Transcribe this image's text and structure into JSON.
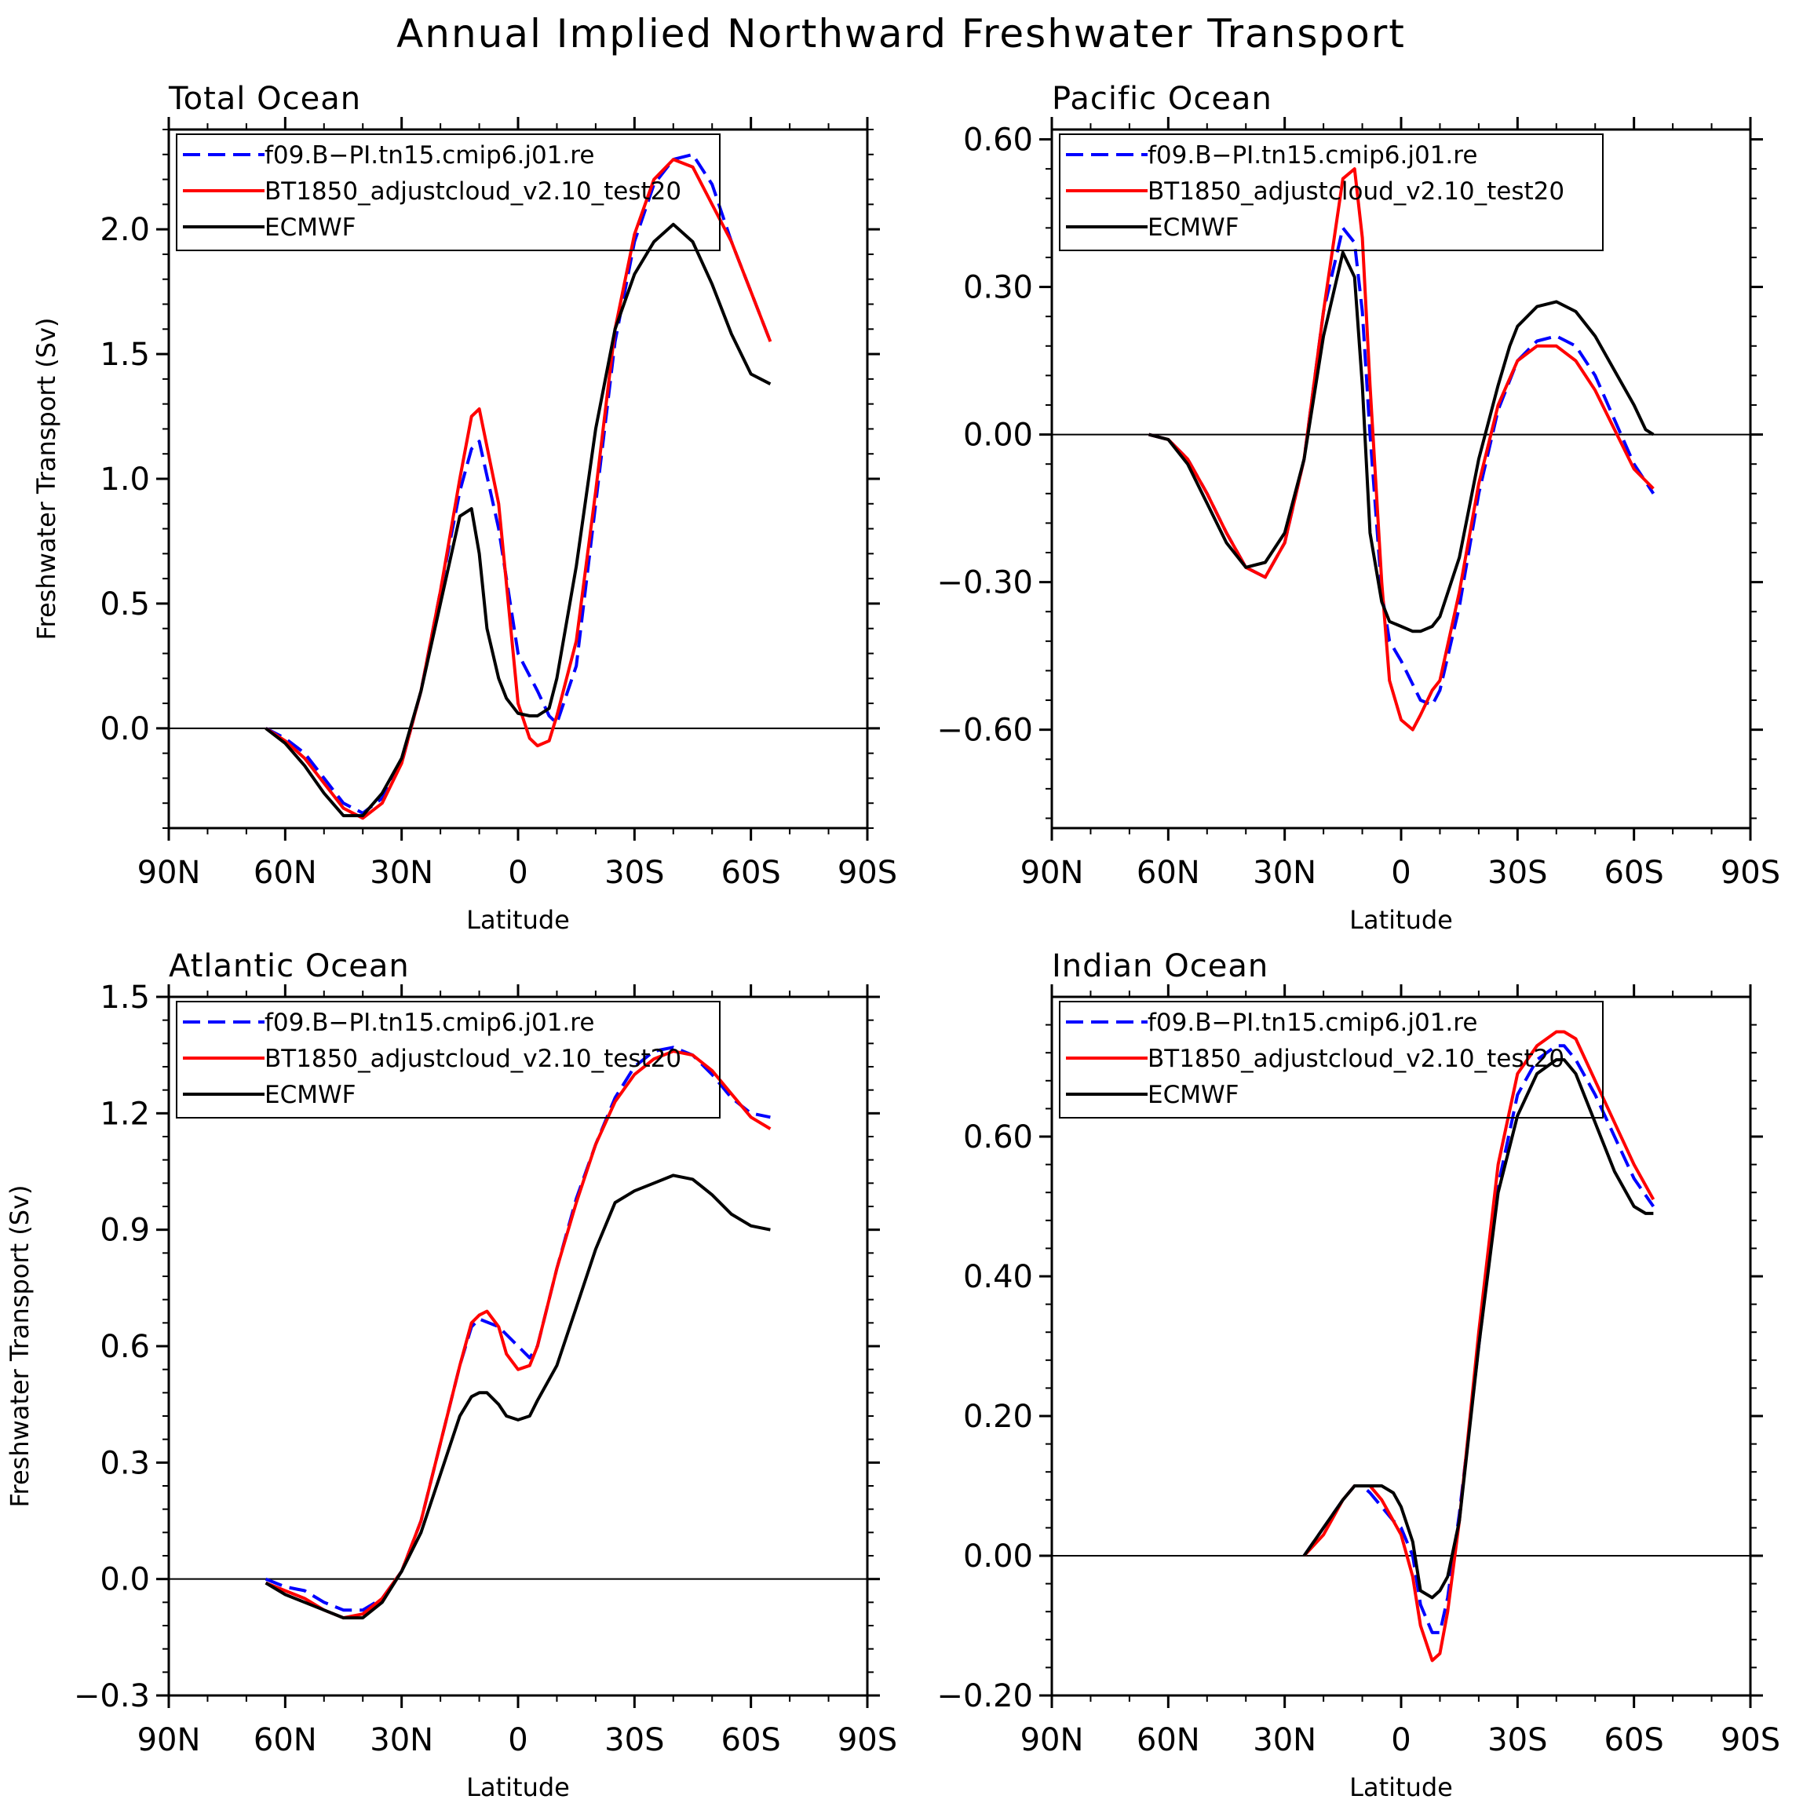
{
  "title": "Annual Implied Northward Freshwater Transport",
  "colors": {
    "series_1": "#0000ff",
    "series_2": "#ff0000",
    "series_3": "#000000"
  },
  "chart_data": [
    {
      "type": "line",
      "title": "Total Ocean",
      "xlabel": "Latitude",
      "ylabel": "Freshwater Transport (Sv)",
      "x_direction": "north-to-south",
      "xlim": [
        90,
        -90
      ],
      "ylim": [
        -0.4,
        2.4
      ],
      "xticks": [
        90,
        60,
        30,
        0,
        -30,
        -60,
        -90
      ],
      "xtick_labels": [
        "90N",
        "60N",
        "30N",
        "0",
        "30S",
        "60S",
        "90S"
      ],
      "yticks": [
        0.0,
        0.5,
        1.0,
        1.5,
        2.0
      ],
      "ytick_labels": [
        "0.0",
        "0.5",
        "1.0",
        "1.5",
        "2.0"
      ],
      "legend": "top-left",
      "series": [
        {
          "name": "f09.B−PI.tn15.cmip6.j01.re",
          "style": "dashed",
          "color": "#0000ff",
          "x": [
            65,
            60,
            55,
            50,
            45,
            40,
            35,
            30,
            25,
            20,
            15,
            12,
            10,
            5,
            0,
            -5,
            -8,
            -10,
            -15,
            -20,
            -25,
            -30,
            -35,
            -40,
            -45,
            -50,
            -55,
            -60,
            -65
          ],
          "y": [
            0.0,
            -0.04,
            -0.1,
            -0.2,
            -0.3,
            -0.34,
            -0.28,
            -0.14,
            0.15,
            0.55,
            0.95,
            1.12,
            1.15,
            0.8,
            0.3,
            0.15,
            0.05,
            0.02,
            0.25,
            0.9,
            1.55,
            1.95,
            2.18,
            2.28,
            2.3,
            2.18,
            1.95,
            1.75,
            1.55
          ]
        },
        {
          "name": "BT1850_adjustcloud_v2.10_test20",
          "style": "solid",
          "color": "#ff0000",
          "x": [
            65,
            60,
            55,
            50,
            45,
            40,
            35,
            30,
            25,
            20,
            15,
            12,
            10,
            5,
            0,
            -3,
            -5,
            -8,
            -10,
            -15,
            -20,
            -25,
            -30,
            -35,
            -40,
            -45,
            -50,
            -55,
            -60,
            -65
          ],
          "y": [
            0.0,
            -0.05,
            -0.12,
            -0.22,
            -0.32,
            -0.36,
            -0.3,
            -0.14,
            0.15,
            0.55,
            1.0,
            1.25,
            1.28,
            0.9,
            0.1,
            -0.04,
            -0.07,
            -0.05,
            0.05,
            0.35,
            0.95,
            1.6,
            1.98,
            2.2,
            2.28,
            2.25,
            2.1,
            1.95,
            1.75,
            1.55
          ]
        },
        {
          "name": "ECMWF",
          "style": "solid",
          "color": "#000000",
          "x": [
            65,
            60,
            55,
            50,
            45,
            40,
            35,
            30,
            25,
            20,
            15,
            12,
            10,
            8,
            5,
            3,
            0,
            -3,
            -5,
            -8,
            -10,
            -15,
            -20,
            -25,
            -30,
            -35,
            -40,
            -45,
            -50,
            -55,
            -60,
            -65
          ],
          "y": [
            0.0,
            -0.06,
            -0.15,
            -0.26,
            -0.35,
            -0.35,
            -0.26,
            -0.12,
            0.15,
            0.5,
            0.85,
            0.88,
            0.7,
            0.4,
            0.2,
            0.12,
            0.06,
            0.05,
            0.05,
            0.08,
            0.2,
            0.65,
            1.2,
            1.6,
            1.82,
            1.95,
            2.02,
            1.95,
            1.78,
            1.58,
            1.42,
            1.38
          ]
        }
      ]
    },
    {
      "type": "line",
      "title": "Pacific Ocean",
      "xlabel": "Latitude",
      "ylabel": "",
      "x_direction": "north-to-south",
      "xlim": [
        90,
        -90
      ],
      "ylim": [
        -0.8,
        0.62
      ],
      "xticks": [
        90,
        60,
        30,
        0,
        -30,
        -60,
        -90
      ],
      "xtick_labels": [
        "90N",
        "60N",
        "30N",
        "0",
        "30S",
        "60S",
        "90S"
      ],
      "yticks": [
        -0.6,
        -0.3,
        0.0,
        0.3,
        0.6
      ],
      "ytick_labels": [
        "−0.60",
        "−0.30",
        "0.00",
        "0.30",
        "0.60"
      ],
      "legend": "top-left",
      "series": [
        {
          "name": "f09.B−PI.tn15.cmip6.j01.re",
          "style": "dashed",
          "color": "#0000ff",
          "x": [
            65,
            60,
            55,
            50,
            45,
            40,
            35,
            30,
            25,
            20,
            15,
            12,
            10,
            8,
            5,
            3,
            0,
            -5,
            -8,
            -10,
            -15,
            -20,
            -25,
            -30,
            -35,
            -40,
            -45,
            -50,
            -55,
            -60,
            -65
          ],
          "y": [
            0.0,
            -0.01,
            -0.05,
            -0.12,
            -0.2,
            -0.27,
            -0.29,
            -0.22,
            -0.05,
            0.25,
            0.42,
            0.39,
            0.25,
            0.0,
            -0.32,
            -0.42,
            -0.46,
            -0.54,
            -0.55,
            -0.52,
            -0.35,
            -0.12,
            0.05,
            0.15,
            0.19,
            0.2,
            0.18,
            0.12,
            0.03,
            -0.06,
            -0.12
          ]
        },
        {
          "name": "BT1850_adjustcloud_v2.10_test20",
          "style": "solid",
          "color": "#ff0000",
          "x": [
            65,
            60,
            55,
            50,
            45,
            40,
            35,
            30,
            25,
            20,
            15,
            12,
            10,
            8,
            5,
            3,
            0,
            -3,
            -5,
            -8,
            -10,
            -15,
            -20,
            -25,
            -30,
            -35,
            -40,
            -45,
            -50,
            -55,
            -60,
            -65
          ],
          "y": [
            0.0,
            -0.01,
            -0.05,
            -0.12,
            -0.2,
            -0.27,
            -0.29,
            -0.22,
            -0.05,
            0.25,
            0.52,
            0.54,
            0.4,
            0.1,
            -0.3,
            -0.5,
            -0.58,
            -0.6,
            -0.57,
            -0.52,
            -0.5,
            -0.32,
            -0.1,
            0.06,
            0.15,
            0.18,
            0.18,
            0.15,
            0.09,
            0.01,
            -0.07,
            -0.11
          ]
        },
        {
          "name": "ECMWF",
          "style": "solid",
          "color": "#000000",
          "x": [
            65,
            60,
            55,
            50,
            45,
            40,
            35,
            30,
            25,
            20,
            15,
            12,
            10,
            8,
            5,
            3,
            0,
            -3,
            -5,
            -8,
            -10,
            -15,
            -20,
            -25,
            -28,
            -30,
            -35,
            -40,
            -45,
            -50,
            -55,
            -60,
            -63,
            -65
          ],
          "y": [
            0.0,
            -0.01,
            -0.06,
            -0.14,
            -0.22,
            -0.27,
            -0.26,
            -0.2,
            -0.05,
            0.2,
            0.37,
            0.32,
            0.1,
            -0.2,
            -0.34,
            -0.38,
            -0.39,
            -0.4,
            -0.4,
            -0.39,
            -0.37,
            -0.25,
            -0.05,
            0.1,
            0.18,
            0.22,
            0.26,
            0.27,
            0.25,
            0.2,
            0.13,
            0.06,
            0.01,
            0.0
          ]
        }
      ]
    },
    {
      "type": "line",
      "title": "Atlantic Ocean",
      "xlabel": "Latitude",
      "ylabel": "Freshwater Transport (Sv)",
      "x_direction": "north-to-south",
      "xlim": [
        90,
        -90
      ],
      "ylim": [
        -0.3,
        1.5
      ],
      "xticks": [
        90,
        60,
        30,
        0,
        -30,
        -60,
        -90
      ],
      "xtick_labels": [
        "90N",
        "60N",
        "30N",
        "0",
        "30S",
        "60S",
        "90S"
      ],
      "yticks": [
        -0.3,
        0.0,
        0.3,
        0.6,
        0.9,
        1.2,
        1.5
      ],
      "ytick_labels": [
        "−0.3",
        "0.0",
        "0.3",
        "0.6",
        "0.9",
        "1.2",
        "1.5"
      ],
      "legend": "top-left",
      "series": [
        {
          "name": "f09.B−PI.tn15.cmip6.j01.re",
          "style": "dashed",
          "color": "#0000ff",
          "x": [
            65,
            60,
            55,
            50,
            45,
            40,
            35,
            30,
            25,
            20,
            15,
            12,
            10,
            5,
            0,
            -3,
            -5,
            -10,
            -15,
            -20,
            -25,
            -30,
            -35,
            -40,
            -45,
            -50,
            -55,
            -60,
            -65
          ],
          "y": [
            0.0,
            -0.02,
            -0.03,
            -0.06,
            -0.08,
            -0.08,
            -0.05,
            0.02,
            0.15,
            0.35,
            0.55,
            0.65,
            0.67,
            0.65,
            0.6,
            0.57,
            0.6,
            0.8,
            0.98,
            1.12,
            1.24,
            1.32,
            1.36,
            1.37,
            1.35,
            1.3,
            1.24,
            1.2,
            1.19
          ]
        },
        {
          "name": "BT1850_adjustcloud_v2.10_test20",
          "style": "solid",
          "color": "#ff0000",
          "x": [
            65,
            60,
            55,
            50,
            45,
            40,
            35,
            30,
            25,
            20,
            15,
            12,
            10,
            8,
            5,
            3,
            0,
            -3,
            -5,
            -10,
            -15,
            -20,
            -25,
            -30,
            -35,
            -40,
            -45,
            -50,
            -55,
            -60,
            -65
          ],
          "y": [
            -0.01,
            -0.03,
            -0.05,
            -0.08,
            -0.1,
            -0.09,
            -0.05,
            0.02,
            0.15,
            0.35,
            0.55,
            0.66,
            0.68,
            0.69,
            0.65,
            0.58,
            0.54,
            0.55,
            0.6,
            0.8,
            0.97,
            1.12,
            1.23,
            1.3,
            1.34,
            1.36,
            1.35,
            1.31,
            1.25,
            1.19,
            1.16
          ]
        },
        {
          "name": "ECMWF",
          "style": "solid",
          "color": "#000000",
          "x": [
            65,
            60,
            55,
            50,
            45,
            40,
            35,
            30,
            25,
            20,
            15,
            12,
            10,
            8,
            5,
            3,
            0,
            -3,
            -5,
            -10,
            -15,
            -20,
            -25,
            -30,
            -35,
            -40,
            -45,
            -50,
            -55,
            -60,
            -65
          ],
          "y": [
            -0.01,
            -0.04,
            -0.06,
            -0.08,
            -0.1,
            -0.1,
            -0.06,
            0.02,
            0.12,
            0.27,
            0.42,
            0.47,
            0.48,
            0.48,
            0.45,
            0.42,
            0.41,
            0.42,
            0.46,
            0.55,
            0.7,
            0.85,
            0.97,
            1.0,
            1.02,
            1.04,
            1.03,
            0.99,
            0.94,
            0.91,
            0.9
          ]
        }
      ]
    },
    {
      "type": "line",
      "title": "Indian Ocean",
      "xlabel": "Latitude",
      "ylabel": "",
      "x_direction": "north-to-south",
      "xlim": [
        90,
        -90
      ],
      "ylim": [
        -0.2,
        0.8
      ],
      "xticks": [
        90,
        60,
        30,
        0,
        -30,
        -60,
        -90
      ],
      "xtick_labels": [
        "90N",
        "60N",
        "30N",
        "0",
        "30S",
        "60S",
        "90S"
      ],
      "yticks": [
        -0.2,
        0.0,
        0.2,
        0.4,
        0.6
      ],
      "ytick_labels": [
        "−0.20",
        "0.00",
        "0.20",
        "0.40",
        "0.60"
      ],
      "legend": "top-left",
      "series": [
        {
          "name": "f09.B−PI.tn15.cmip6.j01.re",
          "style": "dashed",
          "color": "#0000ff",
          "x": [
            25,
            20,
            15,
            12,
            10,
            8,
            5,
            2,
            0,
            -3,
            -5,
            -8,
            -10,
            -12,
            -15,
            -20,
            -25,
            -30,
            -35,
            -40,
            -42,
            -45,
            -50,
            -55,
            -60,
            -65
          ],
          "y": [
            0.0,
            0.04,
            0.08,
            0.1,
            0.1,
            0.09,
            0.07,
            0.05,
            0.04,
            0.0,
            -0.07,
            -0.11,
            -0.11,
            -0.06,
            0.06,
            0.3,
            0.53,
            0.66,
            0.71,
            0.73,
            0.73,
            0.71,
            0.66,
            0.6,
            0.54,
            0.5
          ]
        },
        {
          "name": "BT1850_adjustcloud_v2.10_test20",
          "style": "solid",
          "color": "#ff0000",
          "x": [
            25,
            20,
            15,
            12,
            10,
            8,
            5,
            2,
            0,
            -3,
            -5,
            -8,
            -10,
            -12,
            -15,
            -20,
            -25,
            -30,
            -35,
            -40,
            -42,
            -45,
            -50,
            -55,
            -60,
            -65
          ],
          "y": [
            0.0,
            0.03,
            0.08,
            0.1,
            0.1,
            0.1,
            0.08,
            0.05,
            0.03,
            -0.03,
            -0.1,
            -0.15,
            -0.14,
            -0.08,
            0.05,
            0.32,
            0.56,
            0.69,
            0.73,
            0.75,
            0.75,
            0.74,
            0.68,
            0.62,
            0.56,
            0.51
          ]
        },
        {
          "name": "ECMWF",
          "style": "solid",
          "color": "#000000",
          "x": [
            25,
            20,
            15,
            12,
            10,
            8,
            5,
            2,
            0,
            -3,
            -5,
            -8,
            -10,
            -12,
            -15,
            -20,
            -25,
            -30,
            -35,
            -40,
            -42,
            -45,
            -50,
            -55,
            -60,
            -63,
            -65
          ],
          "y": [
            0.0,
            0.04,
            0.08,
            0.1,
            0.1,
            0.1,
            0.1,
            0.09,
            0.07,
            0.02,
            -0.05,
            -0.06,
            -0.05,
            -0.03,
            0.05,
            0.3,
            0.52,
            0.63,
            0.69,
            0.71,
            0.71,
            0.69,
            0.62,
            0.55,
            0.5,
            0.49,
            0.49
          ]
        }
      ]
    }
  ]
}
